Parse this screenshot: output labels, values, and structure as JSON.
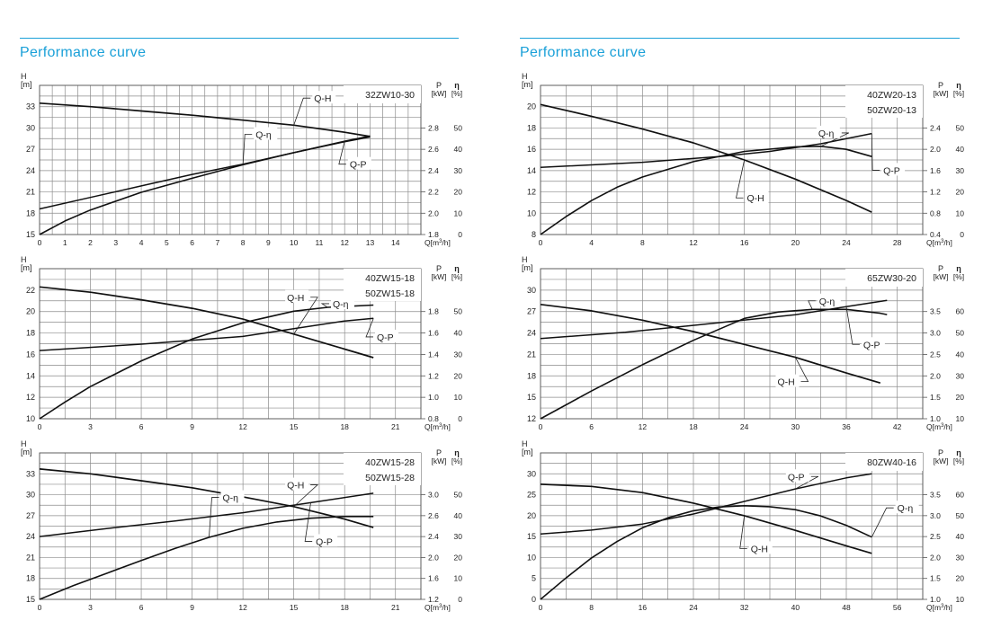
{
  "colors": {
    "accent": "#1aa0d8",
    "grid": "#8c8c8c",
    "curve": "#111111"
  },
  "columns": [
    {
      "title": "Performance curve"
    },
    {
      "title": "Performance curve"
    }
  ],
  "chart_data": [
    {
      "type": "line",
      "models": [
        "32ZW10-30"
      ],
      "x_unit": "Q[m³/h]",
      "y_left_label": "H",
      "y_left_unit": "[m]",
      "y_right_labels": [
        "P",
        "η"
      ],
      "y_right_units": [
        "[kW]",
        "[%]"
      ],
      "x_ticks": [
        0,
        1,
        2,
        3,
        4,
        5,
        6,
        7,
        8,
        9,
        10,
        11,
        12,
        13,
        14
      ],
      "xlim": [
        0,
        15
      ],
      "h_ticks": [
        15,
        18,
        21,
        24,
        27,
        30,
        33
      ],
      "h_range": [
        15,
        36
      ],
      "p_ticks": [
        "1.8",
        "2.0",
        "2.2",
        "2.4",
        "2.6",
        "2.8"
      ],
      "p_range": [
        1.8,
        2.8
      ],
      "eta_ticks": [
        0,
        10,
        20,
        30,
        40,
        50
      ],
      "eta_range": [
        0,
        50
      ],
      "series": [
        {
          "name": "Q-H",
          "scale": "H",
          "x": [
            0,
            2,
            4,
            6,
            8,
            10,
            12,
            13
          ],
          "y": [
            33.5,
            33.0,
            32.4,
            31.8,
            31.1,
            30.4,
            29.4,
            28.8
          ]
        },
        {
          "name": "Q-η",
          "scale": "eta",
          "x": [
            0,
            1,
            2,
            4,
            6,
            8,
            10,
            12,
            13
          ],
          "y": [
            0,
            5.3,
            9.6,
            16.5,
            22.0,
            27.3,
            32.0,
            36.3,
            38.2
          ]
        },
        {
          "name": "Q-P",
          "scale": "P",
          "x": [
            0,
            2,
            4,
            6,
            8,
            10,
            12,
            13
          ],
          "y": [
            2.0,
            2.09,
            2.18,
            2.27,
            2.35,
            2.44,
            2.53,
            2.57
          ]
        }
      ],
      "annotations": [
        {
          "text": "Q-H",
          "x": 10.8,
          "y": 33.7,
          "scale": "H"
        },
        {
          "text": "Q-η",
          "x": 8.5,
          "y": 28.6,
          "scale": "H"
        },
        {
          "text": "Q-P",
          "x": 12.2,
          "y": 24.4,
          "scale": "H"
        }
      ]
    },
    {
      "type": "line",
      "models": [
        "40ZW20-13",
        "50ZW20-13"
      ],
      "x_unit": "Q[m³/h]",
      "y_left_label": "H",
      "y_left_unit": "[m]",
      "y_right_labels": [
        "P",
        "η"
      ],
      "y_right_units": [
        "[kW]",
        "[%]"
      ],
      "x_ticks": [
        0,
        4,
        8,
        12,
        16,
        20,
        24,
        28
      ],
      "xlim": [
        0,
        30
      ],
      "h_ticks": [
        8,
        10,
        12,
        14,
        16,
        18,
        20
      ],
      "h_range": [
        8,
        22
      ],
      "p_ticks": [
        "0.4",
        "0.8",
        "1.2",
        "1.6",
        "2.0",
        "2.4"
      ],
      "p_range": [
        0.4,
        2.4
      ],
      "eta_ticks": [
        0,
        10,
        20,
        30,
        40,
        50
      ],
      "eta_range": [
        0,
        50
      ],
      "series": [
        {
          "name": "Q-H",
          "scale": "H",
          "x": [
            0,
            4,
            8,
            12,
            16,
            20,
            24,
            26
          ],
          "y": [
            20.2,
            19.1,
            17.9,
            16.6,
            15.0,
            13.2,
            11.2,
            10.1
          ]
        },
        {
          "name": "Q-η",
          "scale": "eta",
          "x": [
            0,
            2,
            4,
            6,
            8,
            12,
            16,
            20,
            22,
            24,
            26
          ],
          "y": [
            0,
            7,
            13.3,
            18.5,
            22.5,
            28.5,
            32.5,
            34.3,
            34.5,
            33.3,
            30.5
          ]
        },
        {
          "name": "Q-P",
          "scale": "P",
          "x": [
            0,
            8,
            14,
            18,
            22,
            26
          ],
          "y": [
            1.45,
            1.53,
            1.62,
            1.7,
            1.82,
            1.98
          ]
        }
      ],
      "annotations": [
        {
          "text": "Q-η",
          "x": 21.8,
          "y": 17.2,
          "scale": "H"
        },
        {
          "text": "Q-P",
          "x": 26.9,
          "y": 13.7,
          "scale": "H"
        },
        {
          "text": "Q-H",
          "x": 16.2,
          "y": 11.1,
          "scale": "H"
        }
      ]
    },
    {
      "type": "line",
      "models": [
        "40ZW15-18",
        "50ZW15-18"
      ],
      "x_unit": "Q[m³/h]",
      "y_left_label": "H",
      "y_left_unit": "[m]",
      "y_right_labels": [
        "P",
        "η"
      ],
      "y_right_units": [
        "[kW]",
        "[%]"
      ],
      "x_ticks": [
        0,
        3,
        6,
        9,
        12,
        15,
        18,
        21
      ],
      "xlim": [
        0,
        22.5
      ],
      "h_ticks": [
        10,
        12,
        14,
        16,
        18,
        20,
        22
      ],
      "h_range": [
        10,
        24
      ],
      "p_ticks": [
        "0.8",
        "1.0",
        "1.2",
        "1.4",
        "1.6",
        "1.8"
      ],
      "p_range": [
        0.8,
        1.8
      ],
      "eta_ticks": [
        0,
        10,
        20,
        30,
        40,
        50
      ],
      "eta_range": [
        0,
        50
      ],
      "series": [
        {
          "name": "Q-H",
          "scale": "H",
          "x": [
            0,
            3,
            6,
            9,
            12,
            15,
            18,
            19.7
          ],
          "y": [
            22.3,
            21.8,
            21.1,
            20.3,
            19.3,
            17.9,
            16.5,
            15.7
          ]
        },
        {
          "name": "Q-η",
          "scale": "eta",
          "x": [
            0,
            1.5,
            3,
            6,
            9,
            12,
            15,
            17,
            19.7
          ],
          "y": [
            0,
            6.5,
            12.5,
            22.5,
            31.0,
            37.3,
            41.8,
            43.3,
            44.2
          ]
        },
        {
          "name": "Q-P",
          "scale": "P",
          "x": [
            0,
            6,
            12,
            15,
            18,
            19.7
          ],
          "y": [
            1.33,
            1.38,
            1.44,
            1.5,
            1.56,
            1.58
          ]
        }
      ],
      "annotations": [
        {
          "text": "Q-H",
          "x": 14.6,
          "y": 21.0,
          "scale": "H"
        },
        {
          "text": "Q-η",
          "x": 17.3,
          "y": 20.4,
          "scale": "H"
        },
        {
          "text": "Q-P",
          "x": 19.9,
          "y": 17.3,
          "scale": "H"
        }
      ]
    },
    {
      "type": "line",
      "models": [
        "65ZW30-20"
      ],
      "x_unit": "Q[m³/h]",
      "y_left_label": "H",
      "y_left_unit": "[m]",
      "y_right_labels": [
        "P",
        "η"
      ],
      "y_right_units": [
        "[kW]",
        "[%]"
      ],
      "x_ticks": [
        0,
        6,
        12,
        18,
        24,
        30,
        36,
        42
      ],
      "xlim": [
        0,
        45
      ],
      "h_ticks": [
        12,
        15,
        18,
        21,
        24,
        27,
        30
      ],
      "h_range": [
        12,
        33
      ],
      "p_ticks": [
        "1.0",
        "1.5",
        "2.0",
        "2.5",
        "3.0",
        "3.5"
      ],
      "p_range": [
        1.0,
        3.5
      ],
      "eta_ticks": [
        10,
        20,
        30,
        40,
        50,
        60
      ],
      "eta_range": [
        10,
        60
      ],
      "series": [
        {
          "name": "Q-H",
          "scale": "H",
          "x": [
            0,
            6,
            12,
            18,
            24,
            30,
            36,
            40
          ],
          "y": [
            28.0,
            27.1,
            25.8,
            24.2,
            22.4,
            20.6,
            18.4,
            17.0
          ]
        },
        {
          "name": "Q-η",
          "scale": "eta",
          "x": [
            0,
            6,
            12,
            18,
            24,
            28,
            32,
            36,
            40,
            40.8
          ],
          "y": [
            10,
            20.8,
            31.0,
            40.5,
            49.0,
            51.5,
            52.5,
            52.5,
            51.0,
            50.5
          ]
        },
        {
          "name": "Q-P",
          "scale": "P",
          "x": [
            0,
            10,
            20,
            30,
            36,
            40.8
          ],
          "y": [
            2.56,
            2.68,
            2.85,
            3.02,
            3.18,
            3.3
          ]
        }
      ],
      "annotations": [
        {
          "text": "Q-η",
          "x": 32.8,
          "y": 28.0,
          "scale": "H"
        },
        {
          "text": "Q-P",
          "x": 38.0,
          "y": 21.9,
          "scale": "H"
        },
        {
          "text": "Q-H",
          "x": 27.9,
          "y": 16.7,
          "scale": "H"
        }
      ]
    },
    {
      "type": "line",
      "models": [
        "40ZW15-28",
        "50ZW15-28"
      ],
      "x_unit": "Q[m³/h]",
      "y_left_label": "H",
      "y_left_unit": "[m]",
      "y_right_labels": [
        "P",
        "η"
      ],
      "y_right_units": [
        "[kW]",
        "[%]"
      ],
      "x_ticks": [
        0,
        3,
        6,
        9,
        12,
        15,
        18,
        21
      ],
      "xlim": [
        0,
        22.5
      ],
      "h_ticks": [
        15,
        18,
        21,
        24,
        27,
        30,
        33
      ],
      "h_range": [
        15,
        36
      ],
      "p_ticks": [
        "1.2",
        "1.6",
        "2.0",
        "2.4",
        "2.6",
        "3.0"
      ],
      "p_range": [
        1.2,
        3.2
      ],
      "eta_ticks": [
        0,
        10,
        20,
        30,
        40,
        50
      ],
      "eta_range": [
        0,
        50
      ],
      "series": [
        {
          "name": "Q-H",
          "scale": "H",
          "x": [
            0,
            3,
            6,
            9,
            12,
            15,
            18,
            19.7
          ],
          "y": [
            33.7,
            33.0,
            32.0,
            31.0,
            29.7,
            28.3,
            26.5,
            25.3
          ]
        },
        {
          "name": "Q-η",
          "scale": "eta",
          "x": [
            0,
            2,
            4,
            6,
            8,
            10,
            12,
            14,
            16,
            18,
            19.7
          ],
          "y": [
            0,
            5.5,
            10.5,
            15.5,
            20.3,
            24.7,
            28.3,
            30.8,
            32.3,
            33.0,
            33.0
          ]
        },
        {
          "name": "Q-P",
          "scale": "P",
          "x": [
            0,
            4,
            8,
            12,
            16,
            19.7
          ],
          "y": [
            2.2,
            2.33,
            2.45,
            2.58,
            2.74,
            2.89
          ]
        }
      ],
      "annotations": [
        {
          "text": "Q-H",
          "x": 14.6,
          "y": 30.9,
          "scale": "H"
        },
        {
          "text": "Q-η",
          "x": 10.8,
          "y": 29.1,
          "scale": "H"
        },
        {
          "text": "Q-P",
          "x": 16.3,
          "y": 22.8,
          "scale": "H"
        }
      ]
    },
    {
      "type": "line",
      "models": [
        "80ZW40-16"
      ],
      "x_unit": "Q[m³/h]",
      "y_left_label": "H",
      "y_left_unit": "[m]",
      "y_right_labels": [
        "P",
        "η"
      ],
      "y_right_units": [
        "[kW]",
        "[%]"
      ],
      "x_ticks": [
        0,
        8,
        16,
        24,
        32,
        40,
        48,
        56
      ],
      "xlim": [
        0,
        60
      ],
      "h_ticks": [
        0,
        5,
        10,
        15,
        20,
        25,
        30
      ],
      "h_range": [
        0,
        35
      ],
      "p_ticks": [
        "1.0",
        "1.5",
        "2.0",
        "2.5",
        "3.0",
        "3.5"
      ],
      "p_range": [
        1.0,
        3.5
      ],
      "eta_ticks": [
        10,
        20,
        30,
        40,
        50,
        60
      ],
      "eta_range": [
        10,
        60
      ],
      "series": [
        {
          "name": "Q-H",
          "scale": "H",
          "x": [
            0,
            8,
            16,
            24,
            32,
            40,
            48,
            52
          ],
          "y": [
            27.5,
            27.0,
            25.5,
            23.0,
            20.0,
            16.5,
            12.8,
            11.0
          ]
        },
        {
          "name": "Q-η",
          "scale": "eta",
          "x": [
            0,
            4,
            8,
            12,
            16,
            20,
            24,
            28,
            32,
            36,
            40,
            44,
            48,
            52
          ],
          "y": [
            10,
            18.5,
            26.5,
            33.0,
            38.5,
            42.5,
            45.3,
            46.8,
            47.3,
            46.9,
            45.7,
            43.2,
            39.5,
            34.8
          ]
        },
        {
          "name": "Q-P",
          "scale": "P",
          "x": [
            0,
            8,
            16,
            24,
            32,
            40,
            48,
            52
          ],
          "y": [
            2.3,
            2.38,
            2.5,
            2.7,
            2.95,
            3.2,
            3.42,
            3.5
          ]
        }
      ],
      "annotations": [
        {
          "text": "Q-P",
          "x": 38.8,
          "y": 28.5,
          "scale": "H"
        },
        {
          "text": "Q-η",
          "x": 56.0,
          "y": 21.0,
          "scale": "H"
        },
        {
          "text": "Q-H",
          "x": 33.0,
          "y": 11.3,
          "scale": "H"
        }
      ]
    }
  ]
}
